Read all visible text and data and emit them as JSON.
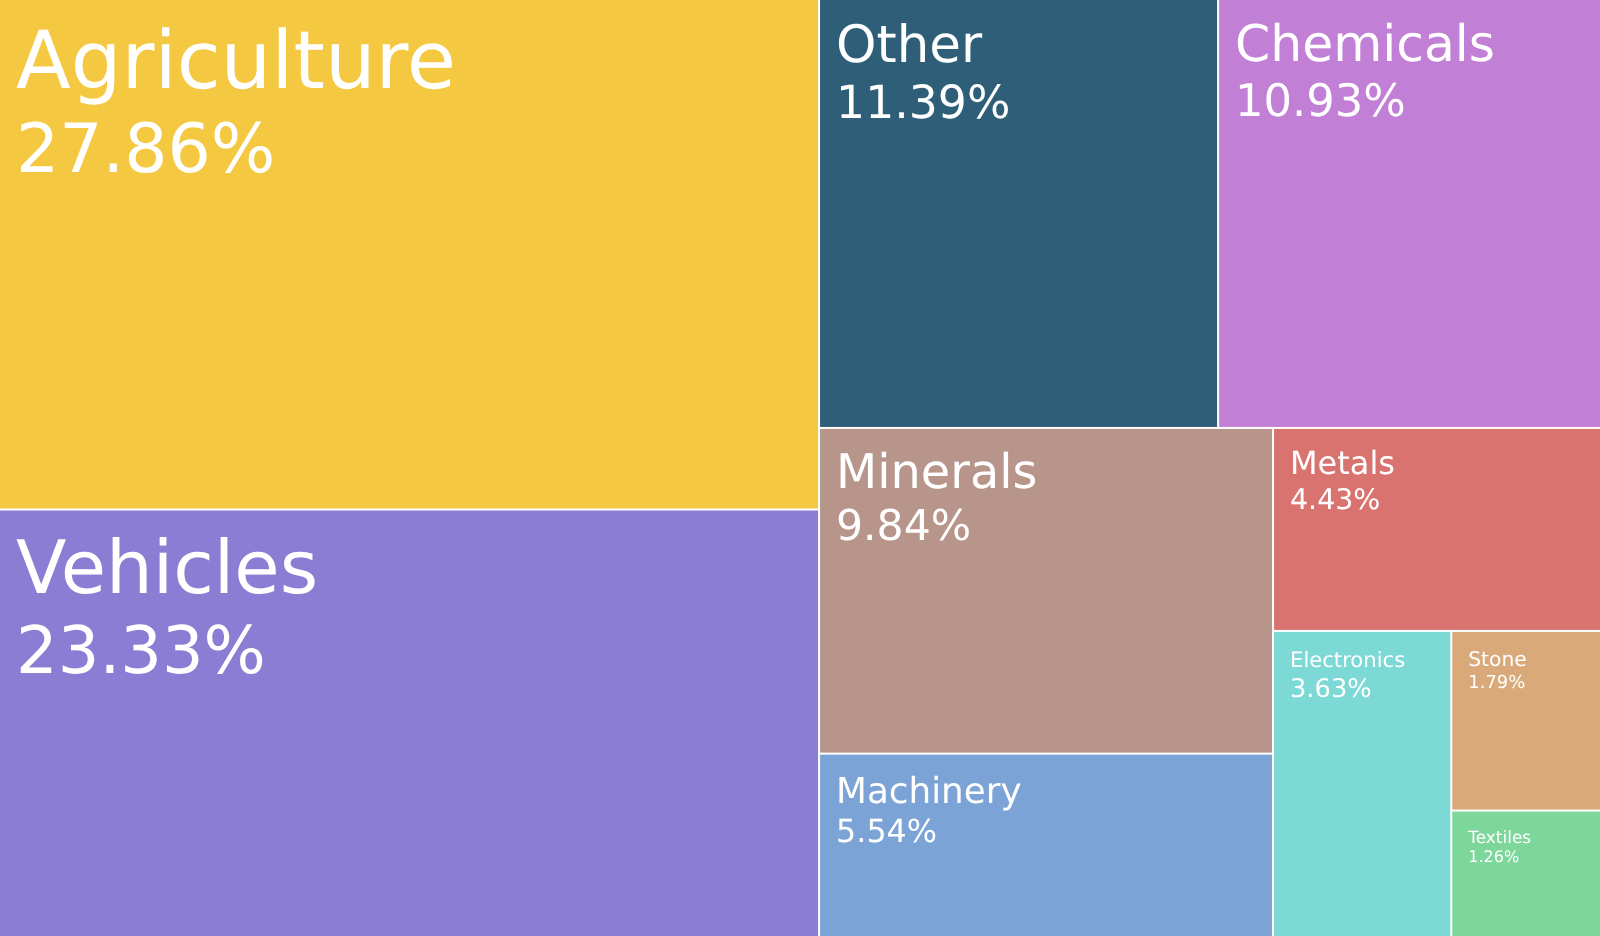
{
  "chart_data": {
    "type": "other",
    "categories": [
      "Agriculture",
      "Vehicles",
      "Other",
      "Chemicals",
      "Minerals",
      "Machinery",
      "Metals",
      "Electronics",
      "Stone",
      "Textiles"
    ],
    "values": [
      27.86,
      23.33,
      11.39,
      10.93,
      9.84,
      5.54,
      4.43,
      3.63,
      1.79,
      1.26
    ],
    "value_labels": [
      "27.86%",
      "23.33%",
      "11.39%",
      "10.93%",
      "9.84%",
      "5.54%",
      "4.43%",
      "3.63%",
      "1.79%",
      "1.26%"
    ],
    "colors": [
      "#f5c842",
      "#8b7dd3",
      "#2e5e78",
      "#c17fd6",
      "#b8958a",
      "#7ba3d6",
      "#d97370",
      "#7dd9d6",
      "#d9a97a",
      "#7dd69a"
    ]
  }
}
